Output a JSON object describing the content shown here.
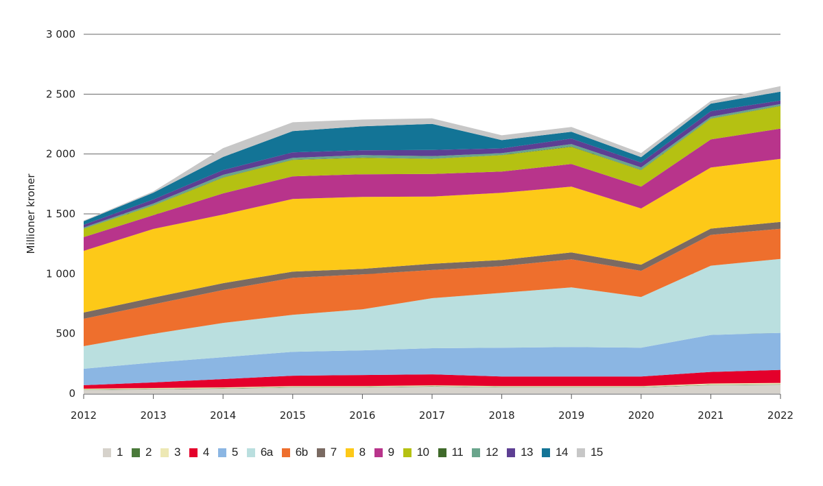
{
  "chart_data": {
    "type": "area",
    "stacked": true,
    "title": "",
    "xlabel": "",
    "ylabel": "Millioner kroner",
    "x": [
      2012,
      2013,
      2014,
      2015,
      2016,
      2017,
      2018,
      2019,
      2020,
      2021,
      2022
    ],
    "x_tick_labels": [
      "2012",
      "2013",
      "2014",
      "2015",
      "2016",
      "2017",
      "2018",
      "2019",
      "2020",
      "2021",
      "2022"
    ],
    "ylim": [
      0,
      3000
    ],
    "y_ticks": [
      0,
      500,
      1000,
      1500,
      2000,
      2500,
      3000
    ],
    "y_tick_labels": [
      "0",
      "500",
      "1 000",
      "1 500",
      "2 000",
      "2 500",
      "3 000"
    ],
    "grid": "horizontal",
    "legend_position": "bottom",
    "series": [
      {
        "name": "1",
        "color": "#d6d2cb",
        "values": [
          29,
          35,
          40,
          51,
          51,
          57,
          51,
          51,
          51,
          69,
          74
        ]
      },
      {
        "name": "2",
        "color": "#4a7a3a",
        "values": [
          3,
          3,
          3,
          3,
          3,
          3,
          3,
          3,
          3,
          3,
          3
        ]
      },
      {
        "name": "3",
        "color": "#ede8b4",
        "values": [
          8,
          8,
          8,
          8,
          8,
          8,
          8,
          8,
          8,
          11,
          11
        ]
      },
      {
        "name": "4",
        "color": "#e4002b",
        "values": [
          29,
          46,
          69,
          86,
          92,
          92,
          80,
          80,
          80,
          97,
          109
        ]
      },
      {
        "name": "5",
        "color": "#8bb6e3",
        "values": [
          137,
          166,
          183,
          200,
          206,
          218,
          240,
          246,
          240,
          309,
          309
        ]
      },
      {
        "name": "6a",
        "color": "#badfdf",
        "values": [
          189,
          240,
          286,
          309,
          343,
          418,
          458,
          498,
          424,
          578,
          618
        ]
      },
      {
        "name": "6b",
        "color": "#ee6f2d",
        "values": [
          229,
          246,
          275,
          309,
          292,
          235,
          223,
          235,
          218,
          258,
          252
        ]
      },
      {
        "name": "7",
        "color": "#7a6a62",
        "values": [
          52,
          57,
          57,
          52,
          46,
          52,
          52,
          57,
          52,
          52,
          57
        ]
      },
      {
        "name": "8",
        "color": "#fdc918",
        "values": [
          515,
          573,
          573,
          607,
          601,
          561,
          561,
          550,
          469,
          510,
          527
        ]
      },
      {
        "name": "9",
        "color": "#b8348b",
        "values": [
          115,
          115,
          177,
          189,
          189,
          189,
          177,
          189,
          183,
          235,
          252
        ]
      },
      {
        "name": "10",
        "color": "#b5c112",
        "values": [
          69,
          80,
          132,
          137,
          137,
          126,
          137,
          143,
          137,
          172,
          189
        ]
      },
      {
        "name": "11",
        "color": "#3f6a2a",
        "values": [
          2,
          2,
          2,
          2,
          2,
          2,
          2,
          2,
          2,
          2,
          2
        ]
      },
      {
        "name": "12",
        "color": "#6aa58c",
        "values": [
          9,
          15,
          21,
          15,
          21,
          21,
          15,
          21,
          21,
          15,
          15
        ]
      },
      {
        "name": "13",
        "color": "#5d3f93",
        "values": [
          23,
          34,
          40,
          46,
          40,
          52,
          40,
          46,
          40,
          46,
          29
        ]
      },
      {
        "name": "14",
        "color": "#137496",
        "values": [
          29,
          57,
          109,
          177,
          200,
          218,
          69,
          57,
          46,
          63,
          74
        ]
      },
      {
        "name": "15",
        "color": "#c7c7c7",
        "values": [
          6,
          11,
          74,
          74,
          57,
          46,
          40,
          40,
          34,
          23,
          46
        ]
      }
    ]
  }
}
